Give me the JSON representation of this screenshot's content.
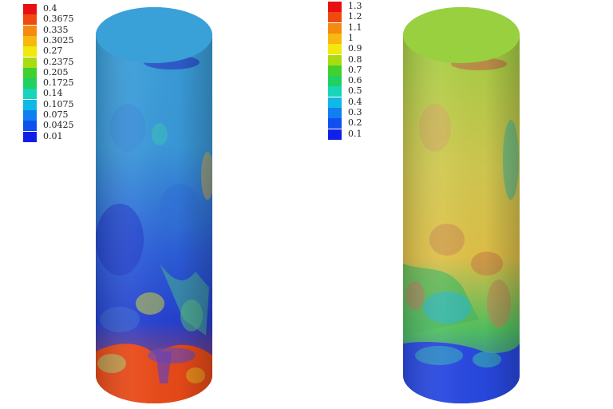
{
  "left_legend": {
    "labels": [
      "0.4",
      "0.3675",
      "0.335",
      "0.3025",
      "0.27",
      "0.2375",
      "0.205",
      "0.1725",
      "0.14",
      "0.1075",
      "0.075",
      "0.0425",
      "0.01"
    ],
    "colors": [
      "#e81010",
      "#f04a10",
      "#f58a10",
      "#f7b810",
      "#f2e80c",
      "#a8dc10",
      "#40d030",
      "#20d060",
      "#18d4b8",
      "#10b8e8",
      "#1080f0",
      "#1050f0",
      "#1020e8"
    ]
  },
  "right_legend": {
    "labels": [
      "1.3",
      "1.2",
      "1.1",
      "1",
      "0.9",
      "0.8",
      "0.7",
      "0.6",
      "0.5",
      "0.4",
      "0.3",
      "0.2",
      "0.1"
    ],
    "colors": [
      "#e81010",
      "#f04a10",
      "#f58a10",
      "#f7b810",
      "#f2e80c",
      "#a8dc10",
      "#40d030",
      "#20d060",
      "#18d4b8",
      "#10b8e8",
      "#1080f0",
      "#1050f0",
      "#1020e8"
    ]
  },
  "cylinders": {
    "left_palette": {
      "top": "#3aa0d8",
      "upper": "#3a98d8",
      "middle": "#2d60d8",
      "lower": "#2540d0",
      "bottom": "#e84018",
      "accent_green": "#48c870",
      "accent_yellow": "#a0c050"
    },
    "right_palette": {
      "top": "#98d040",
      "upper": "#d0c850",
      "middle": "#e0c048",
      "lower": "#50c060",
      "bottom": "#2848e0",
      "accent_cyan": "#30b8b0",
      "accent_orange": "#d88850"
    }
  }
}
